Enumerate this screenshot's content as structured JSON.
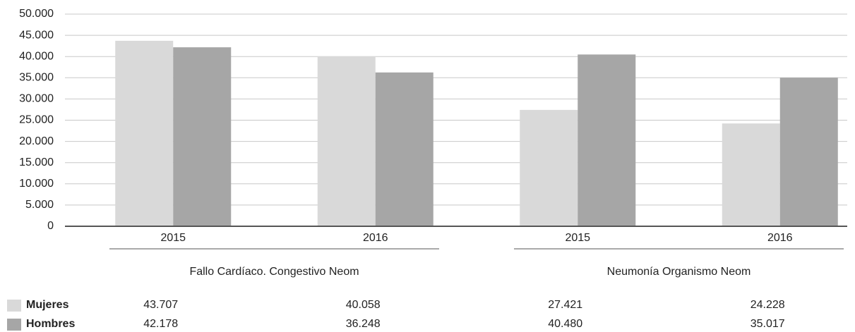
{
  "chart_data": {
    "type": "bar",
    "groups": [
      {
        "name": "Fallo Cardíaco. Congestivo Neom",
        "categories": [
          "2015",
          "2016"
        ]
      },
      {
        "name": "Neumonía Organismo Neom",
        "categories": [
          "2015",
          "2016"
        ]
      }
    ],
    "series": [
      {
        "name": "Mujeres",
        "color": "#d9d9d9",
        "values": [
          43707,
          40058,
          27421,
          24228
        ],
        "value_labels": [
          "43.707",
          "40.058",
          "27.421",
          "24.228"
        ]
      },
      {
        "name": "Hombres",
        "color": "#a6a6a6",
        "values": [
          42178,
          36248,
          40480,
          35017
        ],
        "value_labels": [
          "42.178",
          "36.248",
          "40.480",
          "35.017"
        ]
      }
    ],
    "ylim": [
      0,
      50000
    ],
    "yticks": [
      {
        "value": 0,
        "label": "0"
      },
      {
        "value": 5000,
        "label": "5.000"
      },
      {
        "value": 10000,
        "label": "10.000"
      },
      {
        "value": 15000,
        "label": "15.000"
      },
      {
        "value": 20000,
        "label": "20.000"
      },
      {
        "value": 25000,
        "label": "25.000"
      },
      {
        "value": 30000,
        "label": "30.000"
      },
      {
        "value": 35000,
        "label": "35.000"
      },
      {
        "value": 40000,
        "label": "40.000"
      },
      {
        "value": 45000,
        "label": "45.000"
      },
      {
        "value": 50000,
        "label": "50.000"
      }
    ],
    "grid": true
  }
}
